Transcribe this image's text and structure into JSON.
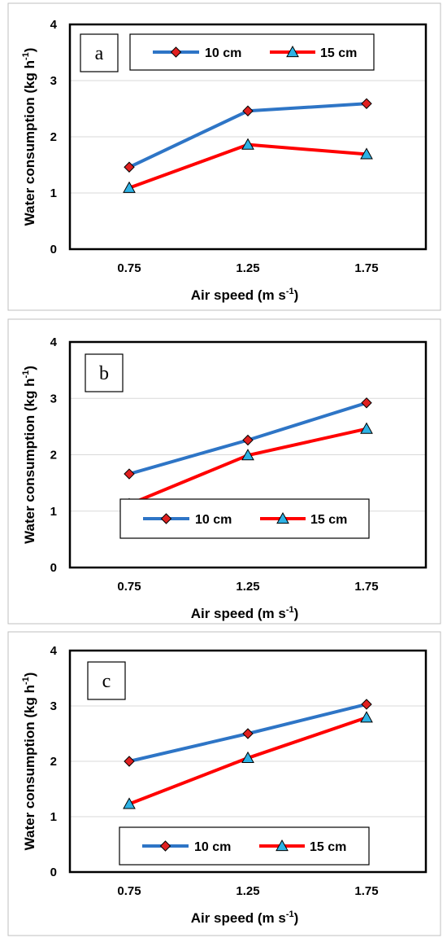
{
  "colors": {
    "series_10cm": "#2E75C6",
    "series_15cm": "#FF0000",
    "marker_10cm": "#E02020",
    "marker_15cm": "#2EB2E5",
    "grid": "#D9D9D9",
    "frame": "#000000",
    "outer_border": "#BFBFBF"
  },
  "chart_data": [
    {
      "type": "line",
      "panel_label": "a",
      "categories": [
        "0.75",
        "1.25",
        "1.75"
      ],
      "series": [
        {
          "name": "10 cm",
          "values": [
            1.46,
            2.46,
            2.59
          ],
          "marker": "diamond"
        },
        {
          "name": "15 cm",
          "values": [
            1.09,
            1.86,
            1.69
          ],
          "marker": "triangle"
        }
      ],
      "xlabel": {
        "main": "Air speed (m s",
        "sup": "-1",
        "close": ")"
      },
      "ylabel": {
        "main": "Water consumption (kg h",
        "sup": "-1",
        "close": ")"
      },
      "y_ticks": [
        "0",
        "1",
        "2",
        "3",
        "4"
      ],
      "ylim": [
        0,
        4
      ],
      "grid": true,
      "legend_position": "top"
    },
    {
      "type": "line",
      "panel_label": "b",
      "categories": [
        "0.75",
        "1.25",
        "1.75"
      ],
      "series": [
        {
          "name": "10 cm",
          "values": [
            1.66,
            2.26,
            2.92
          ],
          "marker": "diamond"
        },
        {
          "name": "15 cm",
          "values": [
            1.12,
            1.99,
            2.46
          ],
          "marker": "triangle"
        }
      ],
      "xlabel": {
        "main": "Air speed (m s",
        "sup": "-1",
        "close": ")"
      },
      "ylabel": {
        "main": "Water consumption (kg h",
        "sup": "-1",
        "close": ")"
      },
      "y_ticks": [
        "0",
        "1",
        "2",
        "3",
        "4"
      ],
      "ylim": [
        0,
        4
      ],
      "grid": true,
      "legend_position": "bottom"
    },
    {
      "type": "line",
      "panel_label": "c",
      "categories": [
        "0.75",
        "1.25",
        "1.75"
      ],
      "series": [
        {
          "name": "10 cm",
          "values": [
            2.0,
            2.5,
            3.03
          ],
          "marker": "diamond"
        },
        {
          "name": "15 cm",
          "values": [
            1.23,
            2.06,
            2.79
          ],
          "marker": "triangle"
        }
      ],
      "xlabel": {
        "main": "Air speed (m s",
        "sup": "-1",
        "close": ")"
      },
      "ylabel": {
        "main": "Water consumption (kg h",
        "sup": "-1",
        "close": ")"
      },
      "y_ticks": [
        "0",
        "1",
        "2",
        "3",
        "4"
      ],
      "ylim": [
        0,
        4
      ],
      "grid": true,
      "legend_position": "bottom"
    }
  ]
}
